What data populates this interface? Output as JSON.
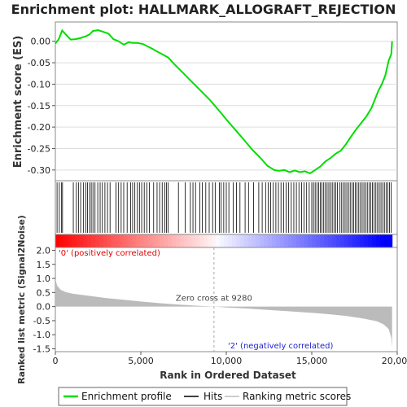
{
  "chart_data": {
    "type": "line",
    "title": "Enrichment plot: HALLMARK_ALLOGRAFT_REJECTION",
    "top_panel": {
      "ylabel": "Enrichment score (ES)",
      "ylim": [
        -0.325,
        0.045
      ],
      "yticks": [
        0.0,
        -0.05,
        -0.1,
        -0.15,
        -0.2,
        -0.25,
        -0.3
      ],
      "ytick_labels": [
        "0.00",
        "-0.05",
        "-0.10",
        "-0.15",
        "-0.20",
        "-0.25",
        "-0.30"
      ],
      "series": [
        {
          "name": "Enrichment profile",
          "color": "#00dd00",
          "x": [
            0,
            200,
            400,
            700,
            900,
            1200,
            1500,
            1800,
            2000,
            2200,
            2500,
            2800,
            3100,
            3400,
            3700,
            4000,
            4300,
            4500,
            4800,
            5100,
            5400,
            5700,
            6000,
            6300,
            6600,
            7000,
            7500,
            8000,
            8500,
            9000,
            9500,
            10000,
            10500,
            11000,
            11500,
            12000,
            12400,
            12800,
            13100,
            13400,
            13700,
            14000,
            14300,
            14600,
            14900,
            15200,
            15500,
            15800,
            16100,
            16400,
            16700,
            17000,
            17300,
            17600,
            17900,
            18200,
            18500,
            18700,
            18900,
            19100,
            19300,
            19500,
            19650,
            19700
          ],
          "y": [
            -0.005,
            0.005,
            0.025,
            0.012,
            0.004,
            0.005,
            0.008,
            0.012,
            0.016,
            0.024,
            0.026,
            0.022,
            0.018,
            0.005,
            0.0,
            -0.008,
            -0.002,
            -0.004,
            -0.004,
            -0.006,
            -0.012,
            -0.018,
            -0.025,
            -0.031,
            -0.038,
            -0.055,
            -0.075,
            -0.095,
            -0.115,
            -0.135,
            -0.158,
            -0.182,
            -0.205,
            -0.228,
            -0.252,
            -0.272,
            -0.29,
            -0.3,
            -0.302,
            -0.3,
            -0.305,
            -0.301,
            -0.305,
            -0.303,
            -0.308,
            -0.3,
            -0.292,
            -0.28,
            -0.272,
            -0.262,
            -0.255,
            -0.24,
            -0.222,
            -0.205,
            -0.19,
            -0.175,
            -0.155,
            -0.135,
            -0.115,
            -0.1,
            -0.08,
            -0.045,
            -0.03,
            0.0
          ]
        }
      ]
    },
    "hits": {
      "name": "Hits",
      "positions": [
        100,
        230,
        350,
        420,
        1050,
        1230,
        1350,
        1480,
        1650,
        1780,
        1880,
        2000,
        2100,
        2200,
        2320,
        2480,
        2620,
        2750,
        2900,
        3050,
        3200,
        3550,
        3700,
        3850,
        4000,
        4200,
        4400,
        4520,
        4650,
        4800,
        4920,
        5050,
        5200,
        5350,
        5500,
        5750,
        5950,
        6100,
        6250,
        6400,
        6500,
        6600,
        7200,
        7600,
        7900,
        8050,
        8200,
        8450,
        8600,
        8800,
        9000,
        9200,
        9350,
        9600,
        9700,
        9850,
        10000,
        10150,
        10400,
        10600,
        10800,
        11100,
        11300,
        11600,
        11900,
        12100,
        12300,
        12450,
        12600,
        12750,
        12900,
        13050,
        13200,
        13350,
        13500,
        13650,
        13800,
        13950,
        14100,
        14250,
        14400,
        14550,
        14700,
        14850,
        15000,
        15100,
        15200,
        15300,
        15400,
        15500,
        15600,
        15700,
        15800,
        15900,
        16000,
        16100,
        16200,
        16300,
        16400,
        16500,
        16650,
        16750,
        16850,
        16950,
        17050,
        17150,
        17250,
        17350,
        17450,
        17550,
        17650,
        17750,
        17850,
        17950,
        18050,
        18150,
        18250,
        18350,
        18450,
        18550,
        18650,
        18750,
        18850,
        18950,
        19050,
        19150,
        19250,
        19350,
        19450,
        19550,
        19650
      ]
    },
    "bottom_panel": {
      "name": "Ranking metric scores",
      "xlabel": "Rank in Ordered Dataset",
      "ylabel": "Ranked list metric (Signal2Noise)",
      "xlim": [
        0,
        20000
      ],
      "ylim": [
        -1.6,
        2.1
      ],
      "xticks": [
        0,
        5000,
        10000,
        15000,
        20000
      ],
      "xtick_labels": [
        "0",
        "5,000",
        "10,000",
        "15,000",
        "20,000"
      ],
      "yticks": [
        2.0,
        1.5,
        1.0,
        0.5,
        0.0,
        -0.5,
        -1.0,
        -1.5
      ],
      "ytick_labels": [
        "2.0",
        "1.5",
        "1.0",
        "0.5",
        "0.0",
        "-0.5",
        "-1.0",
        "-1.5"
      ],
      "x": [
        0,
        100,
        300,
        600,
        1000,
        2000,
        3000,
        4000,
        5000,
        6000,
        7000,
        8000,
        9280,
        10000,
        11000,
        12000,
        13000,
        14000,
        15000,
        16000,
        17000,
        18000,
        18800,
        19200,
        19500,
        19650,
        19700
      ],
      "y": [
        1.0,
        0.75,
        0.6,
        0.52,
        0.46,
        0.38,
        0.3,
        0.24,
        0.18,
        0.13,
        0.08,
        0.04,
        0.0,
        -0.03,
        -0.06,
        -0.1,
        -0.14,
        -0.18,
        -0.22,
        -0.27,
        -0.33,
        -0.42,
        -0.52,
        -0.63,
        -0.8,
        -1.1,
        -1.45
      ],
      "zero_cross": 9280,
      "zero_cross_label": "Zero cross at 9280",
      "pos_label": "'0' (positively correlated)",
      "neg_label": "'2' (negatively correlated)",
      "pos_color": "#ff0000",
      "neg_color": "#0000ff",
      "fill_color": "#bbbbbb"
    },
    "legend": {
      "placement": "bottom",
      "entries": [
        {
          "label": "Enrichment profile",
          "color": "#00dd00"
        },
        {
          "label": "Hits",
          "color": "#000000"
        },
        {
          "label": "Ranking metric scores",
          "color": "#bbbbbb"
        }
      ]
    }
  }
}
